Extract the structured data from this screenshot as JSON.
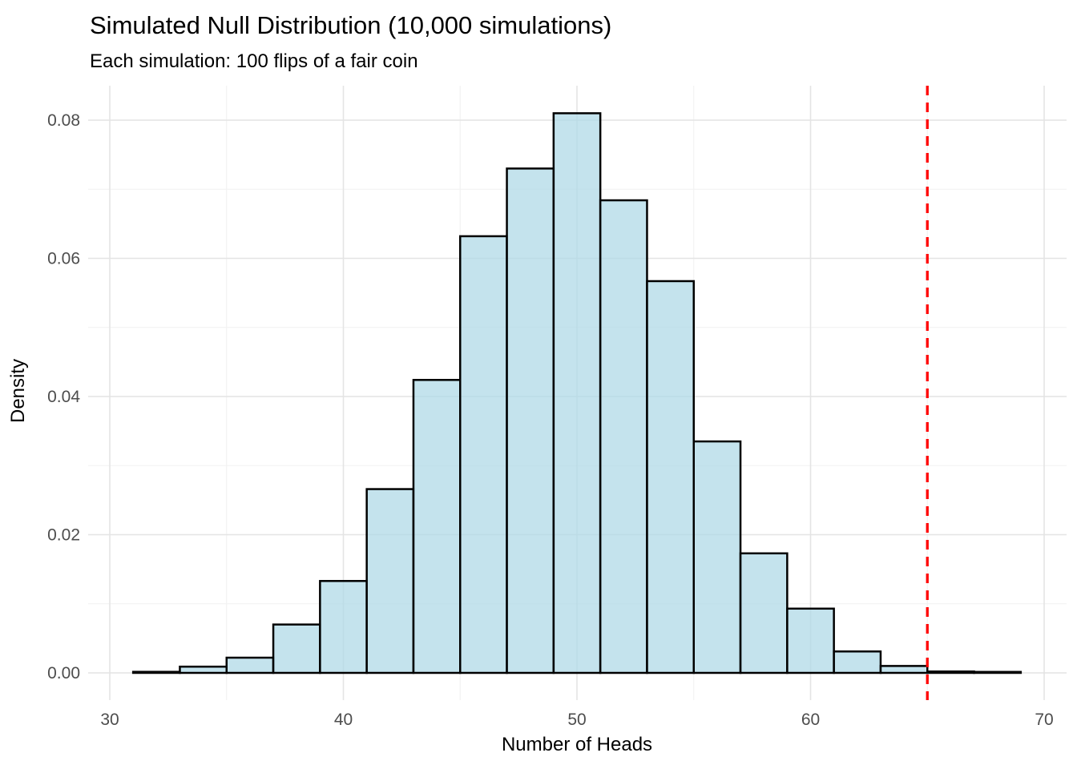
{
  "header": {
    "title": "Simulated Null Distribution (10,000 simulations)",
    "subtitle": "Each simulation: 100 flips of a fair coin"
  },
  "chart_data": {
    "type": "bar",
    "subtype": "histogram",
    "title": "Simulated Null Distribution (10,000 simulations)",
    "subtitle": "Each simulation: 100 flips of a fair coin",
    "xlabel": "Number of Heads",
    "ylabel": "Density",
    "xlim": [
      29.1,
      70.9
    ],
    "ylim": [
      0,
      0.085
    ],
    "grid": "on",
    "x_ticks": [
      30,
      40,
      50,
      60,
      70
    ],
    "x_minor_gridlines": [
      35,
      45,
      55,
      65
    ],
    "y_ticks": [
      {
        "value": 0.0,
        "label": "0.00"
      },
      {
        "value": 0.02,
        "label": "0.02"
      },
      {
        "value": 0.04,
        "label": "0.04"
      },
      {
        "value": 0.06,
        "label": "0.06"
      },
      {
        "value": 0.08,
        "label": "0.08"
      }
    ],
    "y_minor_gridlines": [
      0.01,
      0.03,
      0.05,
      0.07
    ],
    "binwidth": 2,
    "bins": [
      {
        "x0": 31,
        "x1": 33,
        "density": 0.00015
      },
      {
        "x0": 33,
        "x1": 35,
        "density": 0.0009
      },
      {
        "x0": 35,
        "x1": 37,
        "density": 0.0022
      },
      {
        "x0": 37,
        "x1": 39,
        "density": 0.007
      },
      {
        "x0": 39,
        "x1": 41,
        "density": 0.0133
      },
      {
        "x0": 41,
        "x1": 43,
        "density": 0.0266
      },
      {
        "x0": 43,
        "x1": 45,
        "density": 0.0424
      },
      {
        "x0": 45,
        "x1": 47,
        "density": 0.0632
      },
      {
        "x0": 47,
        "x1": 49,
        "density": 0.073
      },
      {
        "x0": 49,
        "x1": 51,
        "density": 0.081
      },
      {
        "x0": 51,
        "x1": 53,
        "density": 0.0684
      },
      {
        "x0": 53,
        "x1": 55,
        "density": 0.0567
      },
      {
        "x0": 55,
        "x1": 57,
        "density": 0.0335
      },
      {
        "x0": 57,
        "x1": 59,
        "density": 0.0173
      },
      {
        "x0": 59,
        "x1": 61,
        "density": 0.0093
      },
      {
        "x0": 61,
        "x1": 63,
        "density": 0.0031
      },
      {
        "x0": 63,
        "x1": 65,
        "density": 0.001
      },
      {
        "x0": 65,
        "x1": 67,
        "density": 0.0002
      },
      {
        "x0": 67,
        "x1": 69,
        "density": 0.0001
      }
    ],
    "observed_line": {
      "x": 65,
      "style": "dashed",
      "color": "#ff0000"
    },
    "colors": {
      "background": "#ffffff",
      "bar_fill": "#add8e6",
      "bar_fill_opacity": 0.72,
      "bar_stroke": "#000000",
      "grid_major": "#e4e4e4",
      "grid_minor": "#f1f1f1",
      "observed_line": "#ff0000",
      "tick_label": "#4d4d4d",
      "title_text": "#000000"
    },
    "legend": "none"
  }
}
